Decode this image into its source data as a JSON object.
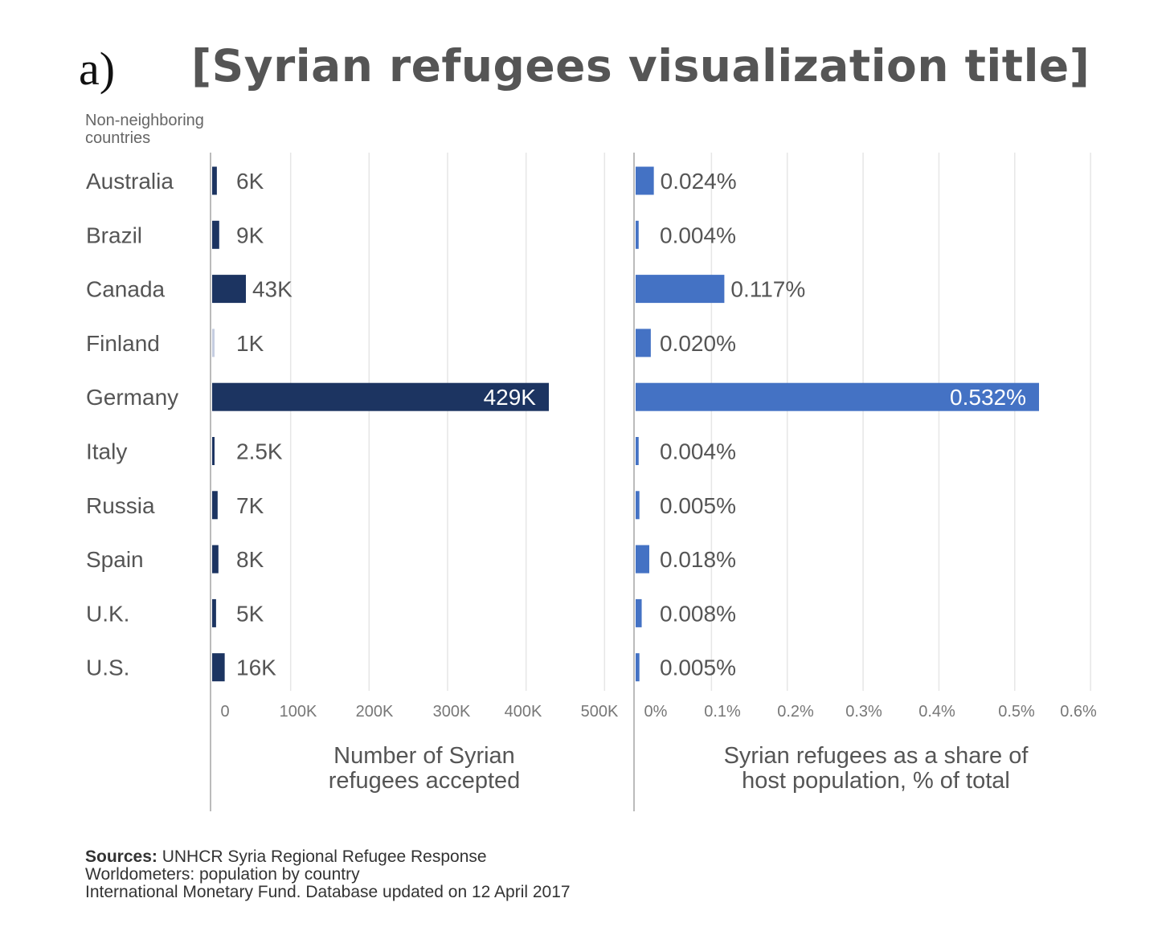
{
  "figure_label": "a)",
  "chart_data": {
    "type": "bar",
    "title": "[Syrian refugees visualization title]",
    "group_label": "Non-neighboring countries",
    "categories": [
      "Australia",
      "Brazil",
      "Canada",
      "Finland",
      "Germany",
      "Italy",
      "Russia",
      "Spain",
      "U.K.",
      "U.S."
    ],
    "panels": [
      {
        "xlabel": "Number of Syrian refugees accepted",
        "xlim": [
          0,
          500000
        ],
        "ticks": [
          0,
          100000,
          200000,
          300000,
          400000,
          500000
        ],
        "tick_labels": [
          "0",
          "100K",
          "200K",
          "300K",
          "400K",
          "500K"
        ],
        "values": [
          6000,
          9000,
          43000,
          1000,
          429000,
          2500,
          7000,
          8000,
          5000,
          16000
        ],
        "value_labels": [
          "6K",
          "9K",
          "43K",
          "1K",
          "429K",
          "2.5K",
          "7K",
          "8K",
          "5K",
          "16K"
        ],
        "bar_colors": [
          "#1c3461",
          "#1c3461",
          "#1c3461",
          "#c5cde0",
          "#1c3461",
          "#1c3461",
          "#1c3461",
          "#1c3461",
          "#1c3461",
          "#1c3461"
        ],
        "grid": true
      },
      {
        "xlabel": "Syrian refugees as a share of host population, % of total",
        "xlim": [
          0,
          0.6
        ],
        "ticks": [
          0,
          0.1,
          0.2,
          0.3,
          0.4,
          0.5,
          0.6
        ],
        "tick_labels": [
          "0%",
          "0.1%",
          "0.2%",
          "0.3%",
          "0.4%",
          "0.5%",
          "0.6%"
        ],
        "values": [
          0.024,
          0.004,
          0.117,
          0.02,
          0.532,
          0.004,
          0.005,
          0.018,
          0.008,
          0.005
        ],
        "value_labels": [
          "0.024%",
          "0.004%",
          "0.117%",
          "0.020%",
          "0.532%",
          "0.004%",
          "0.005%",
          "0.018%",
          "0.008%",
          "0.005%"
        ],
        "bar_colors": [
          "#4472c4",
          "#4472c4",
          "#4472c4",
          "#4472c4",
          "#4472c4",
          "#4472c4",
          "#4472c4",
          "#4472c4",
          "#4472c4",
          "#4472c4"
        ],
        "grid": true
      }
    ]
  },
  "sources": {
    "label": "Sources:",
    "line1": "UNHCR Syria Regional Refugee Response",
    "line2": "Worldometers: population by country",
    "line3": "International Monetary Fund. Database updated on 12 April 2017"
  }
}
